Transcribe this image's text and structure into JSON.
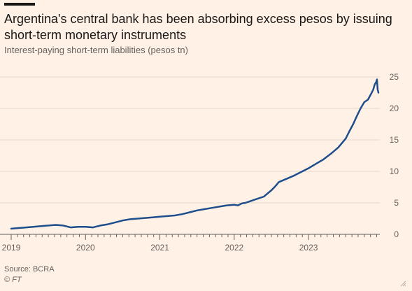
{
  "header": {
    "title": "Argentina's central bank has been absorbing excess pesos by issuing short-term monetary instruments",
    "subtitle": "Interest-paying short-term liabilities (pesos tn)"
  },
  "footer": {
    "source": "Source: BCRA",
    "credit": "© FT"
  },
  "chart_data": {
    "type": "line",
    "title": "",
    "xlabel": "",
    "ylabel": "",
    "xlim": [
      2019.0,
      2023.94
    ],
    "ylim": [
      0,
      25
    ],
    "y_ticks": [
      0,
      5,
      10,
      15,
      20,
      25
    ],
    "x_ticks": [
      2019,
      2020,
      2021,
      2022,
      2023
    ],
    "x_tick_labels": [
      "2019",
      "2020",
      "2021",
      "2022",
      "2023"
    ],
    "y_axis_position": "right",
    "grid": "horizontal",
    "legend": "none",
    "series": [
      {
        "color": "#1f4e8c",
        "x": [
          2019.0,
          2019.1,
          2019.2,
          2019.3,
          2019.4,
          2019.5,
          2019.6,
          2019.7,
          2019.8,
          2019.9,
          2020.0,
          2020.1,
          2020.2,
          2020.3,
          2020.4,
          2020.5,
          2020.6,
          2020.7,
          2020.8,
          2020.9,
          2021.0,
          2021.1,
          2021.2,
          2021.3,
          2021.4,
          2021.5,
          2021.6,
          2021.7,
          2021.8,
          2021.9,
          2022.0,
          2022.05,
          2022.1,
          2022.15,
          2022.2,
          2022.3,
          2022.4,
          2022.5,
          2022.55,
          2022.6,
          2022.7,
          2022.8,
          2022.9,
          2023.0,
          2023.1,
          2023.2,
          2023.3,
          2023.4,
          2023.5,
          2023.55,
          2023.6,
          2023.65,
          2023.7,
          2023.75,
          2023.8,
          2023.85,
          2023.87,
          2023.89,
          2023.91,
          2023.92,
          2023.93,
          2023.94
        ],
        "y": [
          0.9,
          1.0,
          1.1,
          1.2,
          1.3,
          1.4,
          1.5,
          1.4,
          1.1,
          1.2,
          1.2,
          1.1,
          1.4,
          1.6,
          1.9,
          2.2,
          2.4,
          2.5,
          2.6,
          2.7,
          2.8,
          2.9,
          3.0,
          3.2,
          3.5,
          3.8,
          4.0,
          4.2,
          4.4,
          4.6,
          4.7,
          4.6,
          4.9,
          5.0,
          5.2,
          5.6,
          6.0,
          7.0,
          7.6,
          8.3,
          8.8,
          9.3,
          9.9,
          10.5,
          11.2,
          11.9,
          12.8,
          13.8,
          15.2,
          16.4,
          17.5,
          18.8,
          20.0,
          21.0,
          21.4,
          22.5,
          23.0,
          23.8,
          24.2,
          24.6,
          23.0,
          22.5
        ]
      }
    ]
  }
}
